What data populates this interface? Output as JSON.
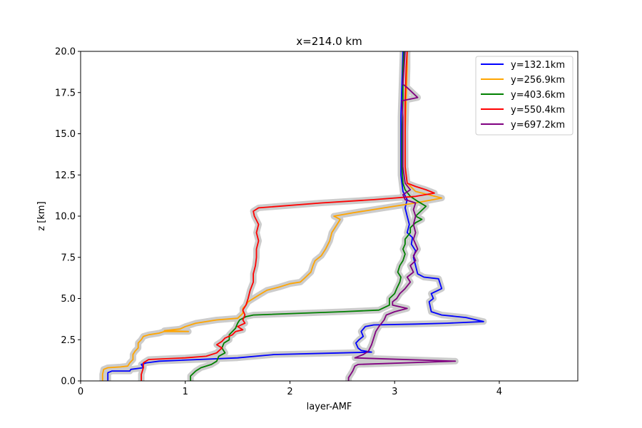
{
  "chart_data": {
    "type": "line",
    "title": "x=214.0 km",
    "xlabel": "layer-AMF",
    "ylabel": "z [km]",
    "xlim": [
      0,
      4.75
    ],
    "ylim": [
      0,
      20
    ],
    "xticks": [
      0,
      1,
      2,
      3,
      4
    ],
    "xtick_labels": [
      "0",
      "1",
      "2",
      "3",
      "4"
    ],
    "yticks": [
      0,
      2.5,
      5,
      7.5,
      10,
      12.5,
      15,
      17.5,
      20
    ],
    "ytick_labels": [
      "0.0",
      "2.5",
      "5.0",
      "7.5",
      "10.0",
      "12.5",
      "15.0",
      "17.5",
      "20.0"
    ],
    "grid": false,
    "legend_position": "upper right",
    "uncertainty_band_color": "#cccccc",
    "series": [
      {
        "name": "y=132.1km",
        "color": "#0000ff",
        "points": [
          [
            0.26,
            0
          ],
          [
            0.26,
            0.5
          ],
          [
            0.3,
            0.6
          ],
          [
            0.47,
            0.6
          ],
          [
            0.48,
            0.7
          ],
          [
            0.6,
            0.8
          ],
          [
            0.58,
            1.0
          ],
          [
            0.63,
            1.1
          ],
          [
            0.75,
            1.2
          ],
          [
            1.5,
            1.4
          ],
          [
            1.85,
            1.6
          ],
          [
            2.5,
            1.7
          ],
          [
            2.78,
            1.75
          ],
          [
            2.68,
            1.85
          ],
          [
            2.65,
            2.0
          ],
          [
            2.63,
            2.3
          ],
          [
            2.66,
            2.5
          ],
          [
            2.7,
            2.7
          ],
          [
            2.68,
            3.0
          ],
          [
            2.72,
            3.3
          ],
          [
            2.8,
            3.4
          ],
          [
            3.2,
            3.45
          ],
          [
            3.5,
            3.5
          ],
          [
            3.85,
            3.6
          ],
          [
            3.68,
            3.85
          ],
          [
            3.45,
            4.0
          ],
          [
            3.35,
            4.2
          ],
          [
            3.33,
            4.8
          ],
          [
            3.37,
            5.0
          ],
          [
            3.35,
            5.3
          ],
          [
            3.45,
            5.6
          ],
          [
            3.42,
            6.2
          ],
          [
            3.28,
            6.3
          ],
          [
            3.22,
            6.5
          ],
          [
            3.2,
            7.0
          ],
          [
            3.18,
            7.5
          ],
          [
            3.2,
            7.9
          ],
          [
            3.16,
            8.3
          ],
          [
            3.17,
            8.7
          ],
          [
            3.12,
            9.0
          ],
          [
            3.14,
            9.5
          ],
          [
            3.12,
            10.0
          ],
          [
            3.1,
            10.5
          ],
          [
            3.12,
            11.0
          ],
          [
            3.08,
            11.5
          ],
          [
            3.06,
            12.5
          ],
          [
            3.06,
            14.0
          ],
          [
            3.06,
            16.0
          ],
          [
            3.07,
            18.0
          ],
          [
            3.08,
            20.0
          ]
        ]
      },
      {
        "name": "y=256.9km",
        "color": "#ffa500",
        "points": [
          [
            0.21,
            0
          ],
          [
            0.21,
            0.4
          ],
          [
            0.22,
            0.7
          ],
          [
            0.26,
            0.8
          ],
          [
            0.38,
            0.85
          ],
          [
            0.45,
            0.9
          ],
          [
            0.47,
            1.1
          ],
          [
            0.5,
            1.3
          ],
          [
            0.5,
            1.6
          ],
          [
            0.52,
            1.8
          ],
          [
            0.55,
            2.0
          ],
          [
            0.55,
            2.3
          ],
          [
            0.58,
            2.5
          ],
          [
            0.6,
            2.7
          ],
          [
            0.65,
            2.8
          ],
          [
            0.75,
            2.9
          ],
          [
            0.8,
            3.0
          ],
          [
            1.03,
            3.0
          ],
          [
            0.8,
            3.05
          ],
          [
            0.95,
            3.15
          ],
          [
            1.0,
            3.3
          ],
          [
            1.1,
            3.5
          ],
          [
            1.3,
            3.7
          ],
          [
            1.5,
            3.8
          ],
          [
            1.55,
            4.1
          ],
          [
            1.55,
            4.4
          ],
          [
            1.58,
            4.6
          ],
          [
            1.6,
            4.8
          ],
          [
            1.65,
            5.0
          ],
          [
            1.7,
            5.2
          ],
          [
            1.78,
            5.5
          ],
          [
            1.9,
            5.7
          ],
          [
            2.0,
            5.9
          ],
          [
            2.1,
            6.0
          ],
          [
            2.15,
            6.3
          ],
          [
            2.2,
            6.6
          ],
          [
            2.22,
            7.0
          ],
          [
            2.24,
            7.3
          ],
          [
            2.3,
            7.6
          ],
          [
            2.34,
            8.0
          ],
          [
            2.38,
            8.5
          ],
          [
            2.4,
            9.0
          ],
          [
            2.45,
            9.5
          ],
          [
            2.48,
            9.8
          ],
          [
            2.42,
            10.0
          ],
          [
            2.6,
            10.2
          ],
          [
            2.9,
            10.5
          ],
          [
            3.2,
            10.8
          ],
          [
            3.45,
            11.1
          ],
          [
            3.2,
            11.5
          ],
          [
            3.12,
            12.0
          ],
          [
            3.1,
            13.0
          ],
          [
            3.1,
            15.0
          ],
          [
            3.11,
            17.0
          ],
          [
            3.12,
            19.0
          ],
          [
            3.12,
            20.0
          ]
        ]
      },
      {
        "name": "y=403.6km",
        "color": "#008000",
        "points": [
          [
            1.05,
            0
          ],
          [
            1.05,
            0.3
          ],
          [
            1.1,
            0.6
          ],
          [
            1.15,
            0.8
          ],
          [
            1.25,
            1.0
          ],
          [
            1.3,
            1.2
          ],
          [
            1.32,
            1.5
          ],
          [
            1.38,
            1.7
          ],
          [
            1.35,
            2.0
          ],
          [
            1.37,
            2.3
          ],
          [
            1.42,
            2.5
          ],
          [
            1.42,
            2.8
          ],
          [
            1.45,
            3.0
          ],
          [
            1.48,
            3.2
          ],
          [
            1.5,
            3.5
          ],
          [
            1.52,
            3.7
          ],
          [
            1.58,
            3.9
          ],
          [
            1.65,
            4.0
          ],
          [
            2.5,
            4.2
          ],
          [
            2.85,
            4.3
          ],
          [
            2.95,
            4.6
          ],
          [
            2.95,
            5.0
          ],
          [
            3.0,
            5.3
          ],
          [
            3.02,
            5.6
          ],
          [
            3.05,
            6.0
          ],
          [
            3.06,
            6.3
          ],
          [
            3.03,
            6.6
          ],
          [
            3.05,
            7.0
          ],
          [
            3.08,
            7.3
          ],
          [
            3.1,
            7.7
          ],
          [
            3.08,
            8.0
          ],
          [
            3.1,
            8.3
          ],
          [
            3.1,
            8.6
          ],
          [
            3.15,
            9.0
          ],
          [
            3.15,
            9.3
          ],
          [
            3.2,
            9.6
          ],
          [
            3.26,
            9.8
          ],
          [
            3.2,
            10.0
          ],
          [
            3.25,
            10.3
          ],
          [
            3.3,
            10.6
          ],
          [
            3.22,
            10.9
          ],
          [
            3.15,
            11.2
          ],
          [
            3.1,
            11.6
          ],
          [
            3.08,
            12.0
          ],
          [
            3.07,
            13.0
          ],
          [
            3.07,
            15.0
          ],
          [
            3.08,
            17.0
          ],
          [
            3.08,
            19.0
          ],
          [
            3.09,
            20.0
          ]
        ]
      },
      {
        "name": "y=550.4km",
        "color": "#ff0000",
        "points": [
          [
            0.58,
            0
          ],
          [
            0.58,
            0.4
          ],
          [
            0.6,
            0.8
          ],
          [
            0.6,
            1.1
          ],
          [
            0.65,
            1.3
          ],
          [
            1.0,
            1.4
          ],
          [
            1.2,
            1.5
          ],
          [
            1.3,
            1.7
          ],
          [
            1.35,
            2.0
          ],
          [
            1.3,
            2.2
          ],
          [
            1.35,
            2.4
          ],
          [
            1.38,
            2.6
          ],
          [
            1.45,
            2.8
          ],
          [
            1.48,
            3.0
          ],
          [
            1.55,
            3.1
          ],
          [
            1.5,
            3.3
          ],
          [
            1.57,
            3.5
          ],
          [
            1.55,
            3.7
          ],
          [
            1.57,
            4.0
          ],
          [
            1.55,
            4.3
          ],
          [
            1.58,
            4.6
          ],
          [
            1.6,
            5.0
          ],
          [
            1.62,
            5.5
          ],
          [
            1.65,
            6.0
          ],
          [
            1.65,
            6.5
          ],
          [
            1.67,
            7.0
          ],
          [
            1.68,
            7.5
          ],
          [
            1.68,
            8.0
          ],
          [
            1.7,
            8.5
          ],
          [
            1.68,
            9.0
          ],
          [
            1.7,
            9.5
          ],
          [
            1.66,
            10.0
          ],
          [
            1.65,
            10.3
          ],
          [
            1.7,
            10.5
          ],
          [
            2.3,
            10.8
          ],
          [
            2.8,
            11.0
          ],
          [
            3.2,
            11.2
          ],
          [
            3.38,
            11.4
          ],
          [
            3.3,
            11.6
          ],
          [
            3.2,
            11.8
          ],
          [
            3.12,
            12.0
          ],
          [
            3.1,
            13.0
          ],
          [
            3.1,
            15.0
          ],
          [
            3.1,
            17.0
          ],
          [
            3.11,
            19.0
          ],
          [
            3.12,
            20.0
          ]
        ]
      },
      {
        "name": "y=697.2km",
        "color": "#800080",
        "points": [
          [
            2.56,
            0
          ],
          [
            2.56,
            0.2
          ],
          [
            2.58,
            0.4
          ],
          [
            2.6,
            0.6
          ],
          [
            2.62,
            0.9
          ],
          [
            2.65,
            1.0
          ],
          [
            3.58,
            1.2
          ],
          [
            2.62,
            1.4
          ],
          [
            2.7,
            1.6
          ],
          [
            2.75,
            1.8
          ],
          [
            2.78,
            2.2
          ],
          [
            2.8,
            2.6
          ],
          [
            2.82,
            3.0
          ],
          [
            2.85,
            3.3
          ],
          [
            2.9,
            3.7
          ],
          [
            2.92,
            4.0
          ],
          [
            3.0,
            4.2
          ],
          [
            3.12,
            4.4
          ],
          [
            2.98,
            4.6
          ],
          [
            2.98,
            4.8
          ],
          [
            3.02,
            5.0
          ],
          [
            3.05,
            5.3
          ],
          [
            3.1,
            5.6
          ],
          [
            3.15,
            6.0
          ],
          [
            3.12,
            6.3
          ],
          [
            3.18,
            6.6
          ],
          [
            3.15,
            7.0
          ],
          [
            3.2,
            7.3
          ],
          [
            3.18,
            7.6
          ],
          [
            3.22,
            8.0
          ],
          [
            3.2,
            8.3
          ],
          [
            3.18,
            8.6
          ],
          [
            3.2,
            9.0
          ],
          [
            3.18,
            9.5
          ],
          [
            3.2,
            10.0
          ],
          [
            3.18,
            10.4
          ],
          [
            3.2,
            10.8
          ],
          [
            3.1,
            11.0
          ],
          [
            3.08,
            11.3
          ],
          [
            3.15,
            11.6
          ],
          [
            3.1,
            12.0
          ],
          [
            3.08,
            13.0
          ],
          [
            3.08,
            15.0
          ],
          [
            3.08,
            16.0
          ],
          [
            3.07,
            17.0
          ],
          [
            3.22,
            17.2
          ],
          [
            3.12,
            17.8
          ],
          [
            3.08,
            18.0
          ],
          [
            3.1,
            20.0
          ]
        ]
      }
    ]
  }
}
